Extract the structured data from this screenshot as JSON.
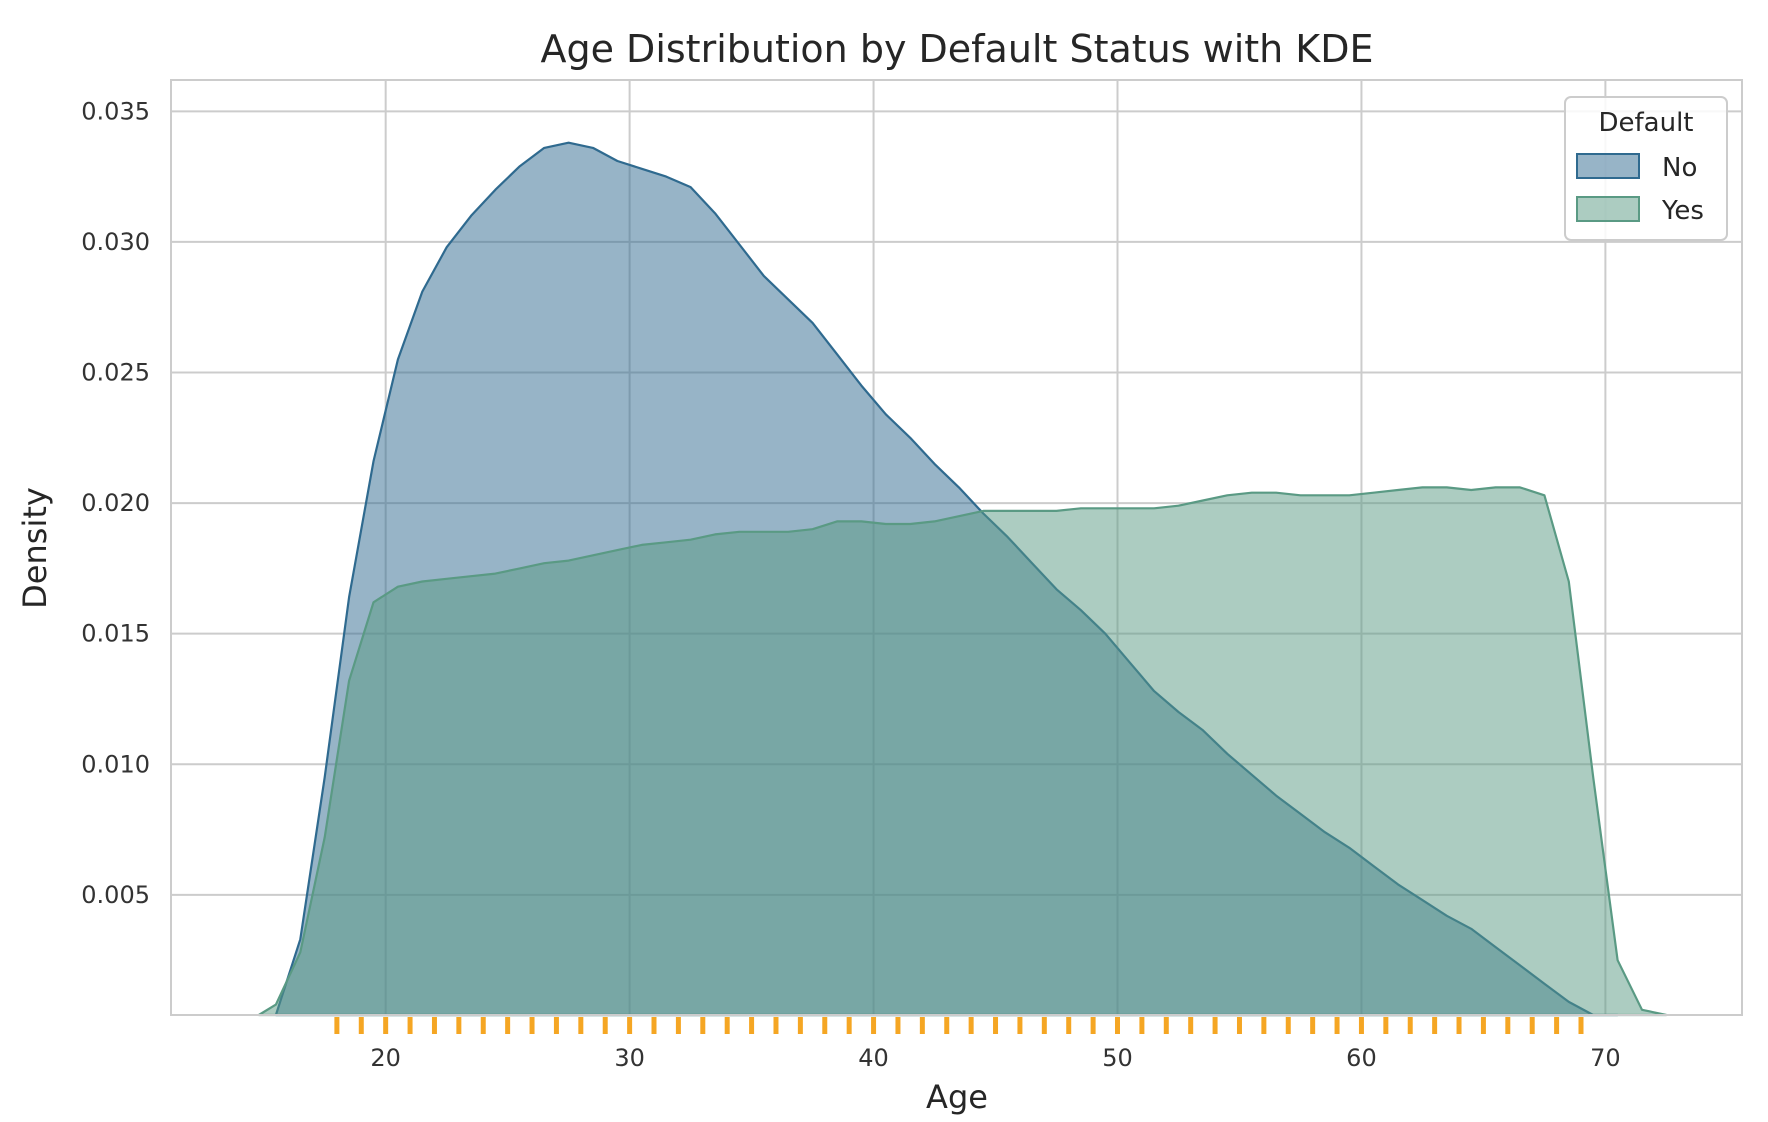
{
  "chart_data": {
    "type": "area",
    "title": "Age Distribution by Default Status with KDE",
    "xlabel": "Age",
    "ylabel": "Density",
    "xlim": [
      11.2,
      75.6
    ],
    "ylim": [
      0.0004,
      0.0362
    ],
    "xticks": [
      20,
      30,
      40,
      50,
      60,
      70
    ],
    "xtick_labels": [
      "20",
      "30",
      "40",
      "50",
      "60",
      "70"
    ],
    "yticks": [
      0.005,
      0.01,
      0.015,
      0.02,
      0.025,
      0.03,
      0.035
    ],
    "ytick_labels": [
      "0.005",
      "0.010",
      "0.015",
      "0.020",
      "0.025",
      "0.030",
      "0.035"
    ],
    "grid": true,
    "legend": {
      "title": "Default",
      "position": "top-right"
    },
    "series": [
      {
        "name": "No",
        "color": "#2f6a8f",
        "x": [
          15.5,
          16.5,
          17.5,
          18.5,
          19.5,
          20.5,
          21.5,
          22.5,
          23.5,
          24.5,
          25.5,
          26.5,
          27.5,
          28.5,
          29.5,
          30.5,
          31.5,
          32.5,
          33.5,
          34.5,
          35.5,
          36.5,
          37.5,
          38.5,
          39.5,
          40.5,
          41.5,
          42.5,
          43.5,
          44.5,
          45.5,
          46.5,
          47.5,
          48.5,
          49.5,
          50.5,
          51.5,
          52.5,
          53.5,
          54.5,
          55.5,
          56.5,
          57.5,
          58.5,
          59.5,
          60.5,
          61.5,
          62.5,
          63.5,
          64.5,
          65.5,
          66.5,
          67.5,
          68.5,
          69.5,
          70.5
        ],
        "y": [
          0.0,
          0.0033,
          0.0095,
          0.0164,
          0.0216,
          0.0255,
          0.0281,
          0.0298,
          0.031,
          0.032,
          0.0329,
          0.0336,
          0.0338,
          0.0336,
          0.0331,
          0.0328,
          0.0325,
          0.0321,
          0.0311,
          0.0299,
          0.0287,
          0.0278,
          0.0269,
          0.0257,
          0.0245,
          0.0234,
          0.0225,
          0.0215,
          0.0206,
          0.0196,
          0.0187,
          0.0177,
          0.0167,
          0.0159,
          0.015,
          0.0139,
          0.0128,
          0.012,
          0.0113,
          0.0104,
          0.0096,
          0.0088,
          0.0081,
          0.0074,
          0.0068,
          0.0061,
          0.0054,
          0.0048,
          0.0042,
          0.0037,
          0.003,
          0.0023,
          0.0016,
          0.0009,
          0.0002,
          0.0
        ]
      },
      {
        "name": "Yes",
        "color": "#5a9a84",
        "x": [
          14.8,
          15.5,
          16.5,
          17.5,
          18.5,
          19.5,
          20.5,
          21.5,
          22.5,
          23.5,
          24.5,
          25.5,
          26.5,
          27.5,
          28.5,
          29.5,
          30.5,
          31.5,
          32.5,
          33.5,
          34.5,
          35.5,
          36.5,
          37.5,
          38.5,
          39.5,
          40.5,
          41.5,
          42.5,
          43.5,
          44.5,
          45.5,
          46.5,
          47.5,
          48.5,
          49.5,
          50.5,
          51.5,
          52.5,
          53.5,
          54.5,
          55.5,
          56.5,
          57.5,
          58.5,
          59.5,
          60.5,
          61.5,
          62.5,
          63.5,
          64.5,
          65.5,
          66.5,
          67.5,
          68.5,
          69.5,
          70.5,
          71.5,
          72.5
        ],
        "y": [
          0.0,
          0.0008,
          0.0028,
          0.0072,
          0.0132,
          0.0162,
          0.0168,
          0.017,
          0.0171,
          0.0172,
          0.0173,
          0.0175,
          0.0177,
          0.0178,
          0.018,
          0.0182,
          0.0184,
          0.0185,
          0.0186,
          0.0188,
          0.0189,
          0.0189,
          0.0189,
          0.019,
          0.0193,
          0.0193,
          0.0192,
          0.0192,
          0.0193,
          0.0195,
          0.0197,
          0.0197,
          0.0197,
          0.0197,
          0.0198,
          0.0198,
          0.0198,
          0.0198,
          0.0199,
          0.0201,
          0.0203,
          0.0204,
          0.0204,
          0.0203,
          0.0203,
          0.0203,
          0.0204,
          0.0205,
          0.0206,
          0.0206,
          0.0205,
          0.0206,
          0.0206,
          0.0203,
          0.017,
          0.0095,
          0.0025,
          0.0006,
          0.0
        ]
      }
    ],
    "rug": {
      "color": "#f5a623",
      "x": [
        18,
        19,
        20,
        21,
        22,
        23,
        24,
        25,
        26,
        27,
        28,
        29,
        30,
        31,
        32,
        33,
        34,
        35,
        36,
        37,
        38,
        39,
        40,
        41,
        42,
        43,
        44,
        45,
        46,
        47,
        48,
        49,
        50,
        51,
        52,
        53,
        54,
        55,
        56,
        57,
        58,
        59,
        60,
        61,
        62,
        63,
        64,
        65,
        66,
        67,
        68,
        69
      ]
    }
  }
}
